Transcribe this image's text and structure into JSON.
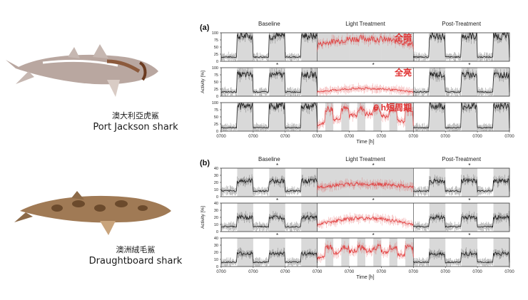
{
  "left": {
    "shark1": {
      "name_zh": "澳大利亞虎鯊",
      "name_en": "Port Jackson shark"
    },
    "shark2": {
      "name_zh": "澳洲絨毛鯊",
      "name_en": "Draughtboard shark"
    }
  },
  "colors": {
    "control": "#1a1a1a",
    "treatment": "#e03a3a",
    "band": "#d9d9d9",
    "label_red": "#e03030"
  },
  "chart_data": [
    {
      "type": "line",
      "panel_label": "(a)",
      "phases": [
        "Baseline",
        "Light Treatment",
        "Post-Treatment"
      ],
      "x_tick_label": "0700",
      "xlabel": "Time [h]",
      "ylabel": "Activity [%]",
      "ylim": [
        0,
        100
      ],
      "yticks": [
        0,
        25,
        50,
        75,
        100
      ],
      "days": 9,
      "treatment_days": [
        3,
        4,
        5
      ],
      "star_days": [
        1,
        4,
        7
      ],
      "rows": [
        {
          "condition_label": "全暗",
          "dark_bands": [
            [
              0.5,
              1
            ],
            [
              1.5,
              2
            ],
            [
              2.5,
              3
            ],
            [
              3,
              4
            ],
            [
              4,
              5
            ],
            [
              5,
              6
            ],
            [
              6.5,
              7
            ],
            [
              7.5,
              8
            ],
            [
              8.5,
              9
            ]
          ],
          "dark_level": 88,
          "light_level": 15,
          "treat_level": 45,
          "treat_peak": 80
        },
        {
          "condition_label": "全亮",
          "dark_bands": [
            [
              0.5,
              1
            ],
            [
              1.5,
              2
            ],
            [
              2.5,
              3
            ],
            [
              6.5,
              7
            ],
            [
              7.5,
              8
            ],
            [
              8.5,
              9
            ]
          ],
          "dark_level": 75,
          "light_level": 15,
          "treat_level": 15,
          "treat_peak": 35
        },
        {
          "condition_label": "6 h短周期",
          "dark_bands": [
            [
              0.5,
              1
            ],
            [
              1.5,
              2
            ],
            [
              2.5,
              3
            ],
            [
              3.25,
              3.5
            ],
            [
              3.75,
              4
            ],
            [
              4.25,
              4.5
            ],
            [
              4.75,
              5
            ],
            [
              5.25,
              5.5
            ],
            [
              5.75,
              6
            ],
            [
              6.5,
              7
            ],
            [
              7.5,
              8
            ],
            [
              8.5,
              9
            ]
          ],
          "dark_level": 88,
          "light_level": 12,
          "treat_level": 20,
          "treat_peak": 85
        }
      ]
    },
    {
      "type": "line",
      "panel_label": "(b)",
      "phases": [
        "Baseline",
        "Light Treatment",
        "Post-Treatment"
      ],
      "x_tick_label": "0700",
      "xlabel": "Time [h]",
      "ylabel": "Activity [%]",
      "ylim": [
        0,
        40
      ],
      "yticks": [
        0,
        10,
        20,
        30,
        40
      ],
      "days": 9,
      "treatment_days": [
        3,
        4,
        5
      ],
      "star_days": [
        1,
        4,
        7
      ],
      "rows": [
        {
          "condition_label": "",
          "dark_bands": [
            [
              0.5,
              1
            ],
            [
              1.5,
              2
            ],
            [
              2.5,
              3
            ],
            [
              3,
              4
            ],
            [
              4,
              5
            ],
            [
              5,
              6
            ],
            [
              6.5,
              7
            ],
            [
              7.5,
              8
            ],
            [
              8.5,
              9
            ]
          ],
          "dark_level": 22,
          "light_level": 8,
          "treat_level": 10,
          "treat_peak": 18
        },
        {
          "condition_label": "",
          "dark_bands": [
            [
              0.5,
              1
            ],
            [
              1.5,
              2
            ],
            [
              2.5,
              3
            ],
            [
              6.5,
              7
            ],
            [
              7.5,
              8
            ],
            [
              8.5,
              9
            ]
          ],
          "dark_level": 20,
          "light_level": 7,
          "treat_level": 10,
          "treat_peak": 25
        },
        {
          "condition_label": "",
          "dark_bands": [
            [
              0.5,
              1
            ],
            [
              1.5,
              2
            ],
            [
              2.5,
              3
            ],
            [
              3.25,
              3.5
            ],
            [
              3.75,
              4
            ],
            [
              4.25,
              4.5
            ],
            [
              4.75,
              5
            ],
            [
              5.25,
              5.5
            ],
            [
              5.75,
              6
            ],
            [
              6.5,
              7
            ],
            [
              7.5,
              8
            ],
            [
              8.5,
              9
            ]
          ],
          "dark_level": 18,
          "light_level": 6,
          "treat_level": 12,
          "treat_peak": 30
        }
      ]
    }
  ]
}
